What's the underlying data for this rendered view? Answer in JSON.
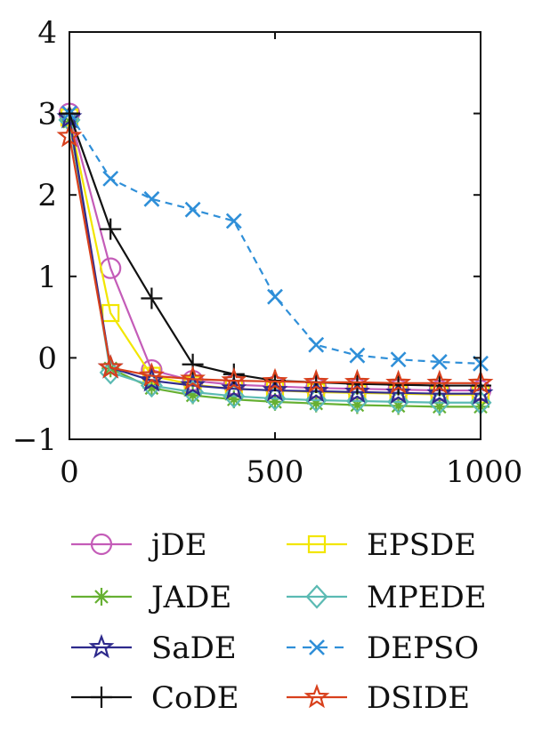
{
  "chart_data": {
    "type": "line",
    "xlim": [
      0,
      1000
    ],
    "ylim": [
      -1,
      4
    ],
    "x_ticks": [
      {
        "value": 0,
        "label": "0"
      },
      {
        "value": 500,
        "label": "500"
      },
      {
        "value": 1000,
        "label": "1000"
      }
    ],
    "y_ticks": [
      {
        "value": -1,
        "label": "−1"
      },
      {
        "value": 0,
        "label": "0"
      },
      {
        "value": 1,
        "label": "1"
      },
      {
        "value": 2,
        "label": "2"
      },
      {
        "value": 3,
        "label": "3"
      },
      {
        "value": 4,
        "label": "4"
      }
    ],
    "grid": false,
    "legend_position": "bottom",
    "x": [
      0,
      100,
      200,
      300,
      400,
      500,
      600,
      700,
      800,
      900,
      1000
    ],
    "series": [
      {
        "name": "jDE",
        "color": "#c45cb8",
        "marker": "circle",
        "dash": false,
        "values": [
          3.0,
          1.1,
          -0.15,
          -0.28,
          -0.33,
          -0.35,
          -0.37,
          -0.38,
          -0.39,
          -0.4,
          -0.4
        ]
      },
      {
        "name": "EPSDE",
        "color": "#f2e600",
        "marker": "square",
        "dash": false,
        "values": [
          2.95,
          0.55,
          -0.22,
          -0.33,
          -0.38,
          -0.4,
          -0.42,
          -0.43,
          -0.44,
          -0.45,
          -0.45
        ]
      },
      {
        "name": "JADE",
        "color": "#66b032",
        "marker": "asterisk",
        "dash": false,
        "values": [
          2.9,
          -0.13,
          -0.37,
          -0.46,
          -0.51,
          -0.54,
          -0.56,
          -0.58,
          -0.59,
          -0.6,
          -0.6
        ]
      },
      {
        "name": "MPEDE",
        "color": "#5bbab3",
        "marker": "diamond",
        "dash": false,
        "values": [
          2.92,
          -0.18,
          -0.34,
          -0.42,
          -0.47,
          -0.5,
          -0.52,
          -0.53,
          -0.54,
          -0.55,
          -0.55
        ]
      },
      {
        "name": "SaDE",
        "color": "#2e2a8c",
        "marker": "star",
        "dash": false,
        "values": [
          2.95,
          -0.12,
          -0.28,
          -0.34,
          -0.38,
          -0.4,
          -0.41,
          -0.42,
          -0.43,
          -0.44,
          -0.44
        ]
      },
      {
        "name": "DEPSO",
        "color": "#2f8fd8",
        "marker": "x",
        "dash": true,
        "values": [
          3.0,
          2.2,
          1.95,
          1.82,
          1.68,
          0.75,
          0.16,
          0.03,
          -0.02,
          -0.05,
          -0.07
        ]
      },
      {
        "name": "CoDE",
        "color": "#111111",
        "marker": "plus",
        "dash": false,
        "values": [
          3.0,
          1.58,
          0.73,
          -0.08,
          -0.2,
          -0.28,
          -0.3,
          -0.32,
          -0.33,
          -0.34,
          -0.34
        ]
      },
      {
        "name": "DSIDE",
        "color": "#d8401c",
        "marker": "star",
        "dash": false,
        "values": [
          2.72,
          -0.12,
          -0.22,
          -0.26,
          -0.28,
          -0.29,
          -0.3,
          -0.3,
          -0.31,
          -0.31,
          -0.31
        ]
      }
    ],
    "legend": [
      {
        "name": "jDE",
        "color": "#c45cb8",
        "marker": "circle",
        "dash": false
      },
      {
        "name": "EPSDE",
        "color": "#f2e600",
        "marker": "square",
        "dash": false
      },
      {
        "name": "JADE",
        "color": "#66b032",
        "marker": "asterisk",
        "dash": false
      },
      {
        "name": "MPEDE",
        "color": "#5bbab3",
        "marker": "diamond",
        "dash": false
      },
      {
        "name": "SaDE",
        "color": "#2e2a8c",
        "marker": "star",
        "dash": false
      },
      {
        "name": "DEPSO",
        "color": "#2f8fd8",
        "marker": "x",
        "dash": true
      },
      {
        "name": "CoDE",
        "color": "#111111",
        "marker": "plus",
        "dash": false
      },
      {
        "name": "DSIDE",
        "color": "#d8401c",
        "marker": "star",
        "dash": false
      }
    ]
  }
}
